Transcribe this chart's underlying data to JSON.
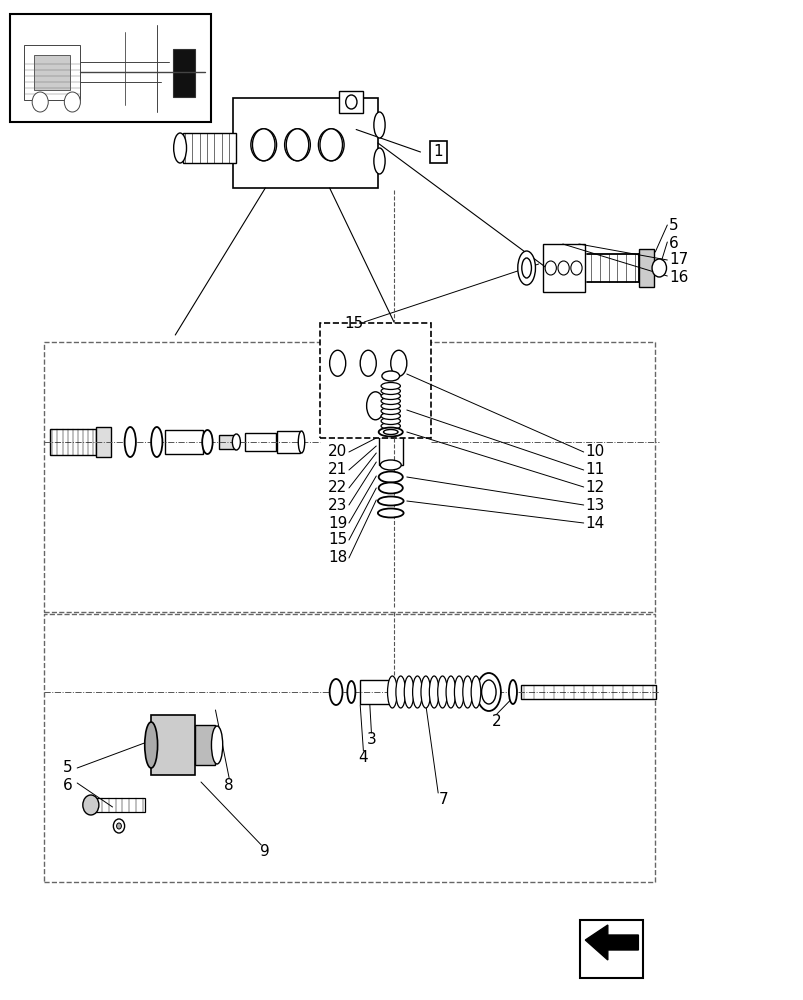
{
  "bg_color": "#ffffff",
  "line_color": "#000000",
  "dashed_color": "#555555",
  "label_fontsize": 11,
  "small_fontsize": 9,
  "fig_width": 8.04,
  "fig_height": 10.0
}
